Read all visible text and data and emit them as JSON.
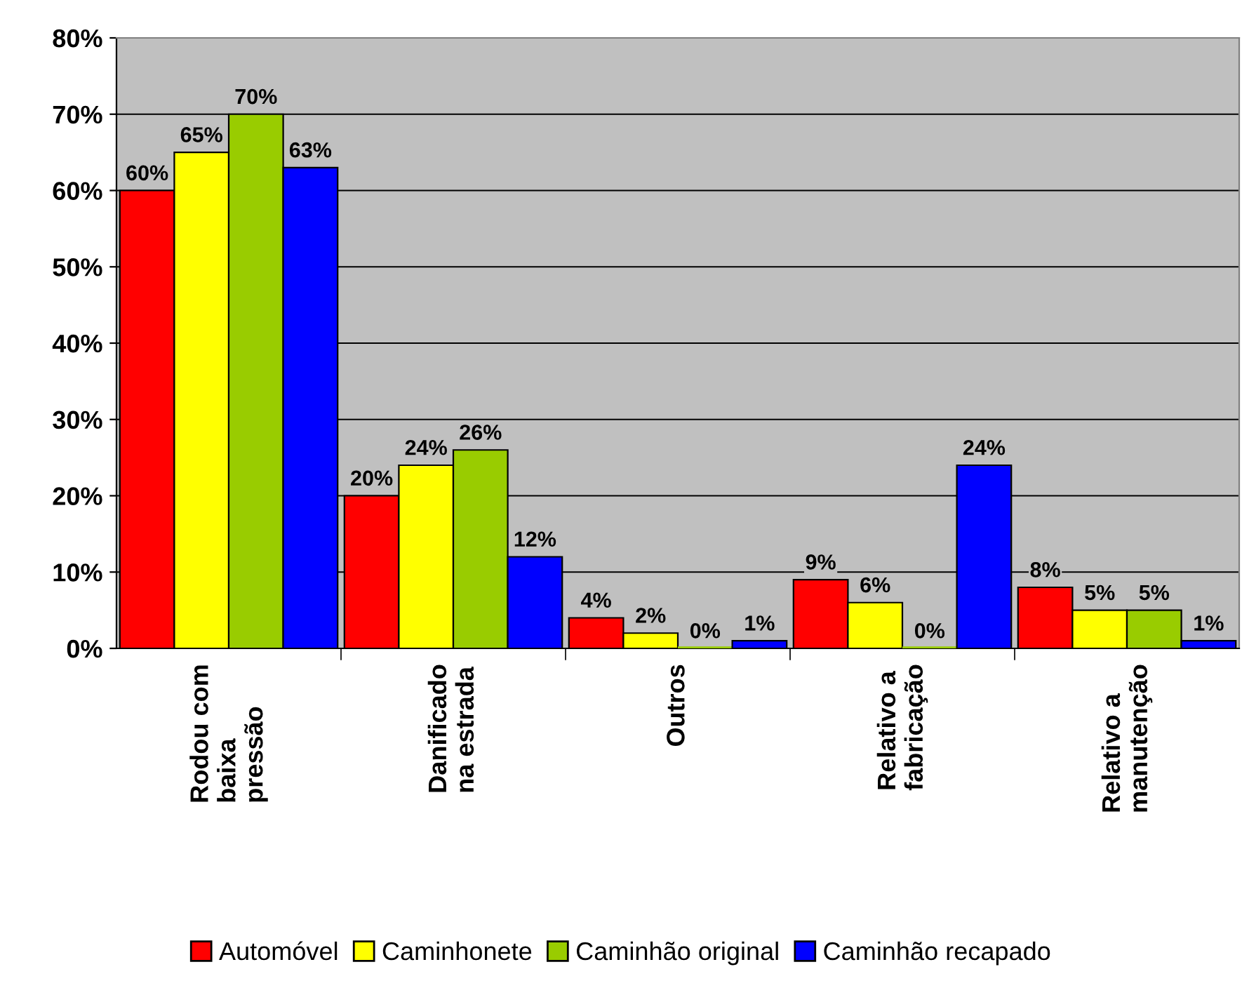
{
  "chart_data": {
    "type": "bar",
    "categories": [
      "Rodou com\nbaixa\npressão",
      "Danificado\nna estrada",
      "Outros",
      "Relativo a\nfabricação",
      "Relativo a\nmanutenção"
    ],
    "series": [
      {
        "name": "Automóvel",
        "color": "#ff0000",
        "values": [
          60,
          20,
          4,
          9,
          8
        ],
        "value_labels": [
          "60%",
          "20%",
          "4%",
          "9%",
          "8%"
        ]
      },
      {
        "name": "Caminhonete",
        "color": "#ffff00",
        "values": [
          65,
          24,
          2,
          6,
          5
        ],
        "value_labels": [
          "65%",
          "24%",
          "2%",
          "6%",
          "5%"
        ]
      },
      {
        "name": "Caminhão original",
        "color": "#99cc00",
        "values": [
          70,
          26,
          0,
          0,
          5
        ],
        "value_labels": [
          "70%",
          "26%",
          "0%",
          "0%",
          "5%"
        ]
      },
      {
        "name": "Caminhão recapado",
        "color": "#0000ff",
        "values": [
          63,
          12,
          1,
          24,
          1
        ],
        "value_labels": [
          "63%",
          "12%",
          "1%",
          "24%",
          "1%"
        ]
      }
    ],
    "ylim": [
      0,
      80
    ],
    "yticks": [
      {
        "value": 0,
        "label": "0%"
      },
      {
        "value": 10,
        "label": "10%"
      },
      {
        "value": 20,
        "label": "20%"
      },
      {
        "value": 30,
        "label": "30%"
      },
      {
        "value": 40,
        "label": "40%"
      },
      {
        "value": 50,
        "label": "50%"
      },
      {
        "value": 60,
        "label": "60%"
      },
      {
        "value": 70,
        "label": "70%"
      },
      {
        "value": 80,
        "label": "80%"
      }
    ],
    "grid": "y",
    "legend": "bottom"
  }
}
